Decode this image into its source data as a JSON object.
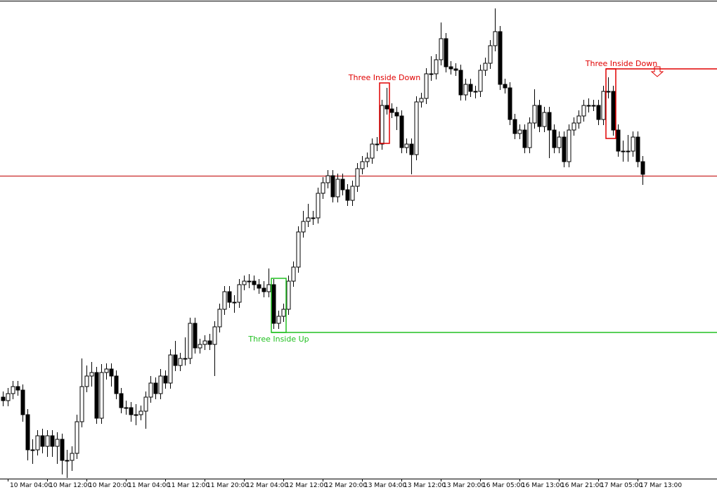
{
  "chart_data": {
    "type": "candlestick",
    "categories": [
      null,
      "10 Mar 04:00",
      null,
      null,
      null,
      null,
      null,
      null,
      null,
      "10 Mar 12:00",
      null,
      null,
      null,
      null,
      null,
      null,
      null,
      "10 Mar 20:00",
      null,
      null,
      null,
      null,
      null,
      null,
      null,
      "11 Mar 04:00",
      null,
      null,
      null,
      null,
      null,
      null,
      null,
      "11 Mar 12:00",
      null,
      null,
      null,
      null,
      null,
      null,
      null,
      "11 Mar 20:00",
      null,
      null,
      null,
      null,
      null,
      null,
      null,
      "12 Mar 04:00",
      null,
      null,
      null,
      null,
      null,
      null,
      null,
      "12 Mar 12:00",
      null,
      null,
      null,
      null,
      null,
      null,
      null,
      "12 Mar 20:00",
      null,
      null,
      null,
      null,
      null,
      null,
      null,
      "13 Mar 04:00",
      null,
      null,
      null,
      null,
      null,
      null,
      null,
      "13 Mar 12:00",
      null,
      null,
      null,
      null,
      null,
      null,
      null,
      "13 Mar 20:00",
      null,
      null,
      null,
      null,
      null,
      null,
      null,
      "16 Mar 05:00",
      null,
      null,
      null,
      null,
      null,
      null,
      null,
      "16 Mar 13:00",
      null,
      null,
      null,
      null,
      null,
      null,
      null,
      "16 Mar 21:00",
      null,
      null,
      null,
      null,
      null,
      null,
      null,
      "17 Mar 05:00",
      null,
      null,
      null,
      null,
      null,
      null,
      null,
      "17 Mar 13:00",
      null
    ],
    "open": [
      135,
      130,
      140,
      150,
      145,
      110,
      60,
      60,
      80,
      65,
      80,
      65,
      75,
      45,
      45,
      55,
      100,
      150,
      165,
      170,
      105,
      170,
      175,
      165,
      140,
      120,
      120,
      110,
      110,
      115,
      135,
      155,
      140,
      165,
      155,
      195,
      180,
      190,
      190,
      240,
      205,
      210,
      215,
      210,
      235,
      260,
      285,
      270,
      270,
      295,
      300,
      300,
      295,
      290,
      285,
      295,
      240,
      250,
      260,
      300,
      320,
      370,
      385,
      390,
      390,
      425,
      440,
      450,
      420,
      445,
      430,
      415,
      435,
      460,
      470,
      475,
      495,
      495,
      550,
      545,
      540,
      535,
      490,
      495,
      480,
      555,
      560,
      595,
      595,
      615,
      645,
      605,
      602,
      600,
      565,
      580,
      570,
      570,
      600,
      610,
      635,
      655,
      580,
      575,
      530,
      510,
      515,
      490,
      525,
      550,
      520,
      540,
      515,
      490,
      505,
      470,
      515,
      525,
      535,
      550,
      550,
      550,
      530,
      570,
      570,
      515,
      485,
      485,
      485,
      505,
      470
    ],
    "high": [
      143,
      148,
      158,
      158,
      153,
      118,
      75,
      88,
      90,
      88,
      88,
      85,
      83,
      60,
      65,
      110,
      190,
      180,
      185,
      178,
      182,
      183,
      183,
      173,
      148,
      130,
      128,
      125,
      123,
      143,
      165,
      163,
      175,
      173,
      203,
      215,
      198,
      220,
      248,
      248,
      218,
      223,
      225,
      243,
      268,
      293,
      293,
      280,
      303,
      308,
      310,
      308,
      303,
      300,
      318,
      303,
      258,
      268,
      308,
      328,
      378,
      400,
      410,
      400,
      433,
      448,
      458,
      458,
      453,
      453,
      438,
      443,
      468,
      478,
      483,
      503,
      505,
      558,
      575,
      553,
      548,
      543,
      503,
      503,
      563,
      568,
      603,
      620,
      623,
      668,
      653,
      613,
      610,
      608,
      588,
      588,
      578,
      608,
      618,
      643,
      688,
      663,
      588,
      583,
      538,
      523,
      523,
      533,
      573,
      558,
      548,
      548,
      523,
      513,
      513,
      523,
      533,
      543,
      558,
      560,
      558,
      558,
      578,
      590,
      578,
      523,
      500,
      508,
      513,
      513,
      478
    ],
    "low": [
      122,
      122,
      132,
      137,
      100,
      45,
      40,
      52,
      55,
      50,
      50,
      40,
      25,
      20,
      30,
      47,
      92,
      142,
      150,
      97,
      97,
      160,
      150,
      132,
      112,
      110,
      100,
      95,
      102,
      90,
      127,
      132,
      132,
      147,
      147,
      172,
      172,
      180,
      182,
      197,
      197,
      202,
      202,
      165,
      227,
      252,
      262,
      255,
      262,
      287,
      290,
      287,
      282,
      277,
      277,
      232,
      232,
      242,
      252,
      292,
      312,
      362,
      377,
      380,
      382,
      417,
      432,
      412,
      412,
      422,
      407,
      407,
      427,
      452,
      462,
      467,
      485,
      487,
      537,
      532,
      515,
      482,
      482,
      452,
      472,
      547,
      552,
      585,
      587,
      607,
      597,
      594,
      592,
      557,
      557,
      562,
      560,
      562,
      592,
      602,
      627,
      572,
      567,
      522,
      502,
      502,
      482,
      482,
      517,
      512,
      512,
      475,
      482,
      482,
      462,
      462,
      507,
      517,
      527,
      540,
      542,
      522,
      522,
      560,
      507,
      477,
      470,
      470,
      477,
      462,
      437
    ],
    "close": [
      130,
      140,
      150,
      145,
      110,
      60,
      60,
      80,
      65,
      80,
      65,
      75,
      45,
      45,
      55,
      100,
      150,
      165,
      170,
      105,
      170,
      175,
      165,
      140,
      120,
      120,
      110,
      110,
      115,
      135,
      155,
      140,
      165,
      155,
      195,
      180,
      190,
      190,
      240,
      205,
      210,
      215,
      210,
      235,
      260,
      285,
      270,
      270,
      295,
      300,
      300,
      295,
      290,
      285,
      295,
      240,
      250,
      260,
      300,
      320,
      370,
      385,
      390,
      390,
      425,
      440,
      450,
      420,
      445,
      430,
      415,
      435,
      460,
      470,
      475,
      495,
      495,
      550,
      545,
      540,
      535,
      490,
      495,
      480,
      555,
      560,
      595,
      595,
      615,
      645,
      605,
      602,
      600,
      565,
      580,
      570,
      570,
      600,
      610,
      635,
      655,
      580,
      575,
      530,
      510,
      515,
      490,
      525,
      550,
      520,
      540,
      515,
      490,
      505,
      470,
      515,
      525,
      535,
      550,
      550,
      550,
      530,
      570,
      570,
      515,
      485,
      485,
      485,
      505,
      470,
      452
    ],
    "ylim": [
      0,
      700
    ],
    "price_line": {
      "value": 450,
      "color": "#c00000"
    },
    "patterns": [
      {
        "label": "Three Inside Down",
        "color": "#e00000",
        "start": 77,
        "end": 78,
        "top": 582,
        "bottom": 496
      },
      {
        "label": "Three Inside Up",
        "color": "#22c022",
        "start": 55,
        "end": 57,
        "top": 304,
        "bottom": 227,
        "level": 227
      },
      {
        "label": "Three Inside Down",
        "color": "#e00000",
        "start": 123,
        "end": 124,
        "top": 602,
        "bottom": 503,
        "level": 602
      }
    ]
  }
}
